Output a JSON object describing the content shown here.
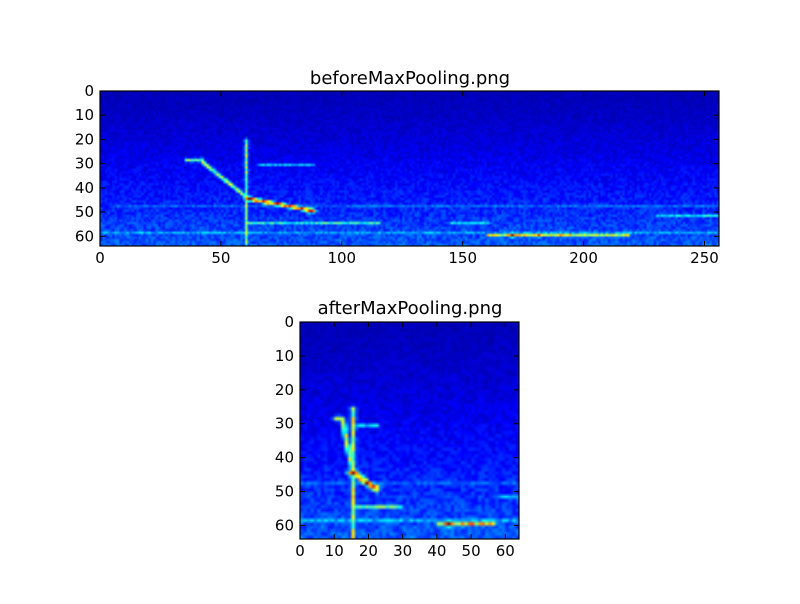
{
  "colors": {
    "background": "#ffffff",
    "axes_frame": "#000000",
    "colormap": "jet",
    "jet_stops": [
      "#00007f",
      "#0000ff",
      "#007fff",
      "#00ffff",
      "#7fff7f",
      "#ffff00",
      "#ff7f00",
      "#ff0000",
      "#7f0000"
    ]
  },
  "chart_data": [
    {
      "type": "heatmap",
      "title": "beforeMaxPooling.png",
      "xlabel": "",
      "ylabel": "",
      "colormap": "jet",
      "grid": false,
      "image_shape": {
        "rows": 64,
        "cols": 256
      },
      "xlim": [
        0,
        256
      ],
      "ylim": [
        64,
        0
      ],
      "y_inverted": true,
      "xticks": [
        0,
        50,
        100,
        150,
        200,
        250
      ],
      "yticks": [
        0,
        10,
        20,
        30,
        40,
        50,
        60
      ],
      "xticklabels": [
        "0",
        "50",
        "100",
        "150",
        "200",
        "250"
      ],
      "yticklabels": [
        "0",
        "10",
        "20",
        "30",
        "40",
        "50",
        "60"
      ],
      "hotspots": [
        {
          "x": 61,
          "y": 44,
          "intensity": 1.0
        },
        {
          "x": 170,
          "y": 59,
          "intensity": 1.0
        },
        {
          "x": 86,
          "y": 49,
          "intensity": 0.85
        },
        {
          "x": 181,
          "y": 59,
          "intensity": 0.85
        }
      ],
      "ridges": [
        {
          "from": [
            35,
            28
          ],
          "to": [
            42,
            28
          ],
          "intensity": 0.5
        },
        {
          "from": [
            42,
            29
          ],
          "to": [
            61,
            44
          ],
          "intensity": 0.55
        },
        {
          "from": [
            61,
            44
          ],
          "to": [
            88,
            49
          ],
          "intensity": 0.8
        },
        {
          "from": [
            60,
            20
          ],
          "to": [
            60,
            63
          ],
          "intensity": 0.5
        },
        {
          "from": [
            60,
            54
          ],
          "to": [
            115,
            54
          ],
          "intensity": 0.4
        },
        {
          "from": [
            145,
            54
          ],
          "to": [
            160,
            54
          ],
          "intensity": 0.35
        },
        {
          "from": [
            160,
            59
          ],
          "to": [
            218,
            59
          ],
          "intensity": 0.6
        },
        {
          "from": [
            65,
            30
          ],
          "to": [
            88,
            30
          ],
          "intensity": 0.3
        },
        {
          "from": [
            0,
            58
          ],
          "to": [
            255,
            58
          ],
          "intensity": 0.28
        },
        {
          "from": [
            5,
            47
          ],
          "to": [
            255,
            47
          ],
          "intensity": 0.22
        },
        {
          "from": [
            230,
            51
          ],
          "to": [
            255,
            51
          ],
          "intensity": 0.35
        }
      ]
    },
    {
      "type": "heatmap",
      "title": "afterMaxPooling.png",
      "xlabel": "",
      "ylabel": "",
      "colormap": "jet",
      "grid": false,
      "image_shape": {
        "rows": 64,
        "cols": 64
      },
      "xlim": [
        0,
        64
      ],
      "ylim": [
        64,
        0
      ],
      "y_inverted": true,
      "xticks": [
        0,
        10,
        20,
        30,
        40,
        50,
        60
      ],
      "yticks": [
        0,
        10,
        20,
        30,
        40,
        50,
        60
      ],
      "xticklabels": [
        "0",
        "10",
        "20",
        "30",
        "40",
        "50",
        "60"
      ],
      "yticklabels": [
        "0",
        "10",
        "20",
        "30",
        "40",
        "50",
        "60"
      ],
      "hotspots": [
        {
          "x": 15,
          "y": 44,
          "intensity": 1.0
        },
        {
          "x": 43,
          "y": 59,
          "intensity": 1.0
        },
        {
          "x": 21,
          "y": 48,
          "intensity": 0.85
        },
        {
          "x": 47,
          "y": 59,
          "intensity": 0.75
        }
      ],
      "ridges": [
        {
          "from": [
            10,
            28
          ],
          "to": [
            12,
            28
          ],
          "intensity": 0.5
        },
        {
          "from": [
            12,
            29
          ],
          "to": [
            15,
            44
          ],
          "intensity": 0.55
        },
        {
          "from": [
            15,
            44
          ],
          "to": [
            22,
            49
          ],
          "intensity": 0.8
        },
        {
          "from": [
            15,
            25
          ],
          "to": [
            15,
            63
          ],
          "intensity": 0.55
        },
        {
          "from": [
            15,
            54
          ],
          "to": [
            29,
            54
          ],
          "intensity": 0.45
        },
        {
          "from": [
            40,
            59
          ],
          "to": [
            56,
            59
          ],
          "intensity": 0.65
        },
        {
          "from": [
            16,
            30
          ],
          "to": [
            22,
            30
          ],
          "intensity": 0.35
        },
        {
          "from": [
            0,
            58
          ],
          "to": [
            63,
            58
          ],
          "intensity": 0.3
        },
        {
          "from": [
            0,
            47
          ],
          "to": [
            63,
            47
          ],
          "intensity": 0.22
        },
        {
          "from": [
            58,
            51
          ],
          "to": [
            63,
            51
          ],
          "intensity": 0.35
        }
      ]
    }
  ]
}
